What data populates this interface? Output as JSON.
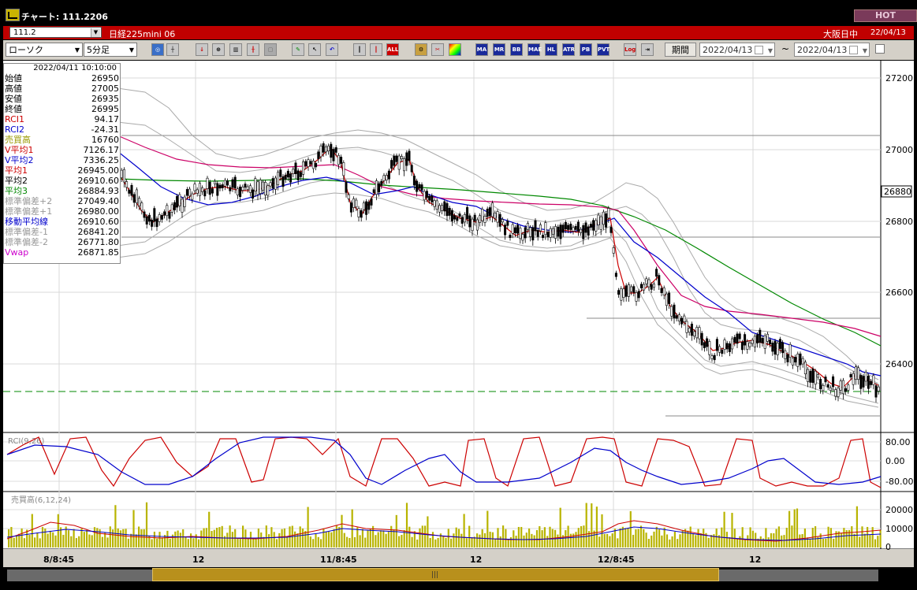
{
  "window": {
    "title": "チャート: 111.2206",
    "hot_label": "HOT"
  },
  "infobar": {
    "code": "111.2",
    "instrument": "日経225mini 06",
    "session": "大阪日中",
    "date": "22/04/13"
  },
  "toolbar": {
    "chart_type": "ローソク",
    "timeframe": "5分足",
    "period_label": "期間",
    "date_from": "2022/04/13",
    "tilde": "~",
    "date_to": "2022/04/13",
    "buttons": [
      "MA",
      "MR",
      "BB",
      "MAE",
      "HL",
      "ATR",
      "PB",
      "PVT",
      "Log"
    ]
  },
  "data_window": {
    "datetime": "2022/04/11  10:10:00",
    "rows": [
      {
        "label": "始値",
        "value": "26950",
        "color": "#000000"
      },
      {
        "label": "高値",
        "value": "27005",
        "color": "#000000"
      },
      {
        "label": "安値",
        "value": "26935",
        "color": "#000000"
      },
      {
        "label": "終値",
        "value": "26995",
        "color": "#000000"
      },
      {
        "label": "RCI1",
        "value": "94.17",
        "color": "#cc0000"
      },
      {
        "label": "RCI2",
        "value": "-24.31",
        "color": "#0000cc"
      },
      {
        "label": "売買高",
        "value": "16760",
        "color": "#999900"
      },
      {
        "label": "V平均1",
        "value": "7126.17",
        "color": "#cc0000"
      },
      {
        "label": "V平均2",
        "value": "7336.25",
        "color": "#0000cc"
      },
      {
        "label": "平均1",
        "value": "26945.00",
        "color": "#cc0000"
      },
      {
        "label": "平均2",
        "value": "26910.60",
        "color": "#000000"
      },
      {
        "label": "平均3",
        "value": "26884.93",
        "color": "#008800"
      },
      {
        "label": "標準偏差+2",
        "value": "27049.40",
        "color": "#999999"
      },
      {
        "label": "標準偏差+1",
        "value": "26980.00",
        "color": "#999999"
      },
      {
        "label": "移動平均線",
        "value": "26910.60",
        "color": "#0000cc"
      },
      {
        "label": "標準偏差-1",
        "value": "26841.20",
        "color": "#999999"
      },
      {
        "label": "標準偏差-2",
        "value": "26771.80",
        "color": "#999999"
      },
      {
        "label": "Vwap",
        "value": "26871.85",
        "color": "#cc00cc"
      }
    ]
  },
  "price_axis": {
    "ticks": [
      "27200",
      "27000",
      "26800",
      "26600",
      "26400"
    ],
    "current_price": "26880"
  },
  "rci_panel": {
    "label": "RCI(9,26)",
    "ticks": [
      "80.00",
      "0.00",
      "-80.00"
    ]
  },
  "volume_panel": {
    "label": "売買高(6,12,24)",
    "ticks": [
      "20000",
      "10000",
      "0"
    ]
  },
  "time_axis": {
    "labels": [
      "8/8:45",
      "12",
      "11/8:45",
      "12",
      "12/8:45",
      "12"
    ]
  },
  "scrollbar": {
    "grip": "|||"
  },
  "colors": {
    "background": "#ffffff",
    "frame": "#000000",
    "infobar": "#c00000",
    "toolbar": "#d4d0c8",
    "ma_short": "#cc0000",
    "ma_mid": "#0000cc",
    "ma_long": "#008800",
    "vwap": "#cc0066",
    "band": "#999999",
    "volume": "#b8b400",
    "scroll_thumb": "#b8901c"
  }
}
